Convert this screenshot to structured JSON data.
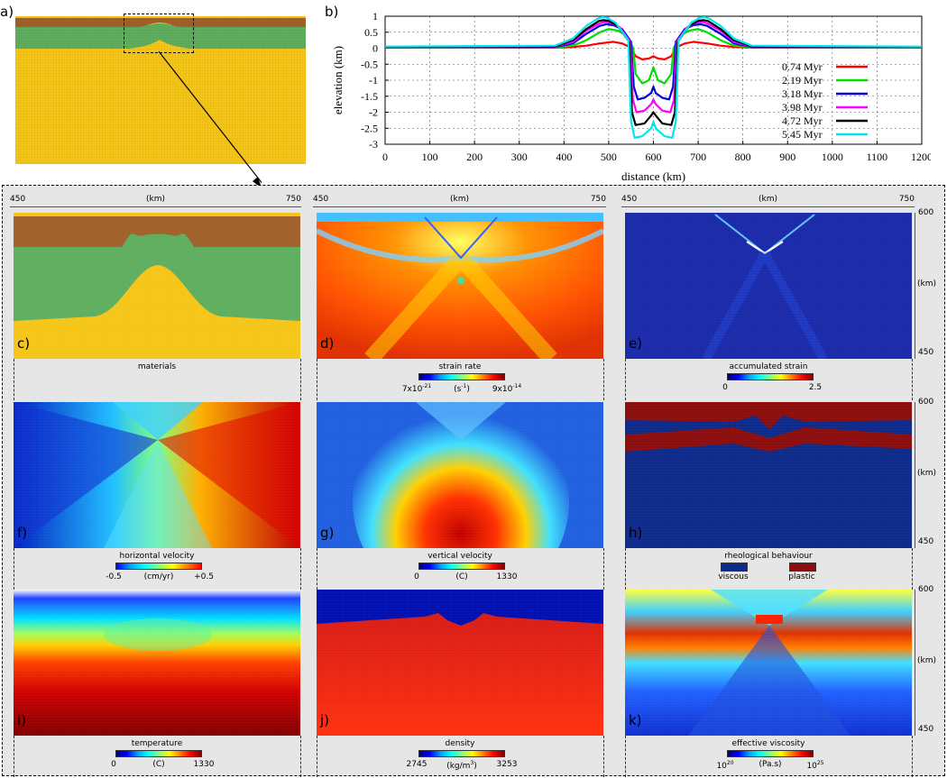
{
  "labels": {
    "a": "a)",
    "b": "b)"
  },
  "chart_data": [
    {
      "type": "line",
      "id": "b",
      "xlabel": "distance (km)",
      "ylabel": "elevation (km)",
      "xlim": [
        0,
        1200
      ],
      "ylim": [
        -3,
        1
      ],
      "xticks": [
        "0",
        "100",
        "200",
        "300",
        "400",
        "500",
        "600",
        "700",
        "800",
        "900",
        "1000",
        "1100",
        "1200"
      ],
      "yticks": [
        "1",
        "0.5",
        "0",
        "-0.5",
        "-1",
        "-1.5",
        "-2",
        "-2.5",
        "-3"
      ],
      "grid": true,
      "legend_position": "right",
      "series": [
        {
          "name": "0.74 Myr",
          "color": "#ff0000",
          "x": [
            0,
            380,
            420,
            450,
            480,
            510,
            530,
            550,
            560,
            575,
            590,
            600,
            610,
            625,
            640,
            650,
            670,
            690,
            720,
            750,
            780,
            820,
            1200
          ],
          "y": [
            0.02,
            0.02,
            0.04,
            0.08,
            0.15,
            0.2,
            0.15,
            0.02,
            -0.25,
            -0.35,
            -0.32,
            -0.25,
            -0.32,
            -0.35,
            -0.25,
            0.02,
            0.15,
            0.2,
            0.15,
            0.08,
            0.04,
            0.02,
            0.02
          ]
        },
        {
          "name": "2.19 Myr",
          "color": "#00dd00",
          "x": [
            0,
            380,
            420,
            450,
            480,
            500,
            520,
            540,
            555,
            560,
            575,
            590,
            600,
            610,
            625,
            640,
            645,
            660,
            680,
            700,
            720,
            750,
            780,
            820,
            1200
          ],
          "y": [
            0.02,
            0.03,
            0.08,
            0.25,
            0.5,
            0.6,
            0.55,
            0.4,
            0.0,
            -0.8,
            -1.1,
            -1.0,
            -0.6,
            -1.0,
            -1.1,
            -0.8,
            0.0,
            0.4,
            0.55,
            0.6,
            0.5,
            0.25,
            0.08,
            0.03,
            0.02
          ]
        },
        {
          "name": "3.18 Myr",
          "color": "#0000dd",
          "x": [
            0,
            380,
            420,
            450,
            480,
            495,
            510,
            530,
            550,
            556,
            565,
            580,
            595,
            600,
            605,
            620,
            635,
            644,
            650,
            670,
            690,
            705,
            720,
            750,
            780,
            820,
            1200
          ],
          "y": [
            0.03,
            0.04,
            0.15,
            0.45,
            0.7,
            0.75,
            0.72,
            0.6,
            0.2,
            -1.2,
            -1.6,
            -1.55,
            -1.4,
            -1.2,
            -1.4,
            -1.55,
            -1.6,
            -1.2,
            0.2,
            0.6,
            0.72,
            0.75,
            0.7,
            0.45,
            0.15,
            0.04,
            0.03
          ]
        },
        {
          "name": "3.98 Myr",
          "color": "#ff00ff",
          "x": [
            0,
            380,
            420,
            450,
            480,
            490,
            505,
            525,
            548,
            554,
            562,
            580,
            595,
            600,
            605,
            620,
            638,
            646,
            652,
            675,
            695,
            710,
            720,
            750,
            780,
            820,
            1200
          ],
          "y": [
            0.03,
            0.05,
            0.2,
            0.55,
            0.78,
            0.82,
            0.8,
            0.65,
            0.2,
            -1.6,
            -2.0,
            -1.95,
            -1.75,
            -1.6,
            -1.75,
            -1.95,
            -2.0,
            -1.6,
            0.2,
            0.65,
            0.8,
            0.82,
            0.78,
            0.55,
            0.2,
            0.05,
            0.03
          ]
        },
        {
          "name": "4.72 Myr",
          "color": "#000000",
          "x": [
            0,
            380,
            420,
            450,
            478,
            488,
            500,
            520,
            546,
            552,
            560,
            580,
            595,
            600,
            605,
            620,
            640,
            648,
            654,
            680,
            700,
            712,
            722,
            750,
            780,
            820,
            1200
          ],
          "y": [
            0.04,
            0.06,
            0.25,
            0.6,
            0.85,
            0.88,
            0.86,
            0.7,
            0.2,
            -2.0,
            -2.4,
            -2.35,
            -2.1,
            -2.0,
            -2.1,
            -2.35,
            -2.4,
            -2.0,
            0.2,
            0.7,
            0.86,
            0.88,
            0.85,
            0.6,
            0.25,
            0.06,
            0.04
          ]
        },
        {
          "name": "5.45 Myr",
          "color": "#00e5ee",
          "x": [
            0,
            380,
            420,
            450,
            475,
            485,
            495,
            515,
            544,
            550,
            558,
            575,
            595,
            600,
            605,
            625,
            642,
            650,
            656,
            685,
            705,
            715,
            725,
            750,
            780,
            820,
            1200
          ],
          "y": [
            0.05,
            0.08,
            0.3,
            0.7,
            0.92,
            0.97,
            0.96,
            0.8,
            0.25,
            -2.3,
            -2.8,
            -2.75,
            -2.5,
            -2.3,
            -2.5,
            -2.75,
            -2.8,
            -2.3,
            0.25,
            0.8,
            0.96,
            0.97,
            0.92,
            0.7,
            0.3,
            0.08,
            0.05
          ]
        }
      ]
    }
  ],
  "maps": {
    "x_start": "450",
    "x_unit": "(km)",
    "x_end": "750",
    "y_top": "600",
    "y_unit": "(km)",
    "y_bottom": "450",
    "panels": {
      "c": {
        "tag": "c)",
        "caption": "materials"
      },
      "d": {
        "tag": "d)",
        "caption": "strain rate",
        "cb_min": "7x10",
        "cb_min_exp": "-21",
        "cb_unit": "(s",
        "cb_unit_exp": "-1",
        "cb_unit_close": ")",
        "cb_max": "9x10",
        "cb_max_exp": "-14"
      },
      "e": {
        "tag": "e)",
        "caption": "accumulated strain",
        "cb_min": "0",
        "cb_max": "2.5"
      },
      "f": {
        "tag": "f)",
        "caption": "horizontal velocity",
        "cb_min": "-0.5",
        "cb_unit": "(cm/yr)",
        "cb_max": "+0.5"
      },
      "g": {
        "tag": "g)",
        "caption": "vertical velocity",
        "cb_min": "0",
        "cb_unit": "(C)",
        "cb_max": "1330"
      },
      "h": {
        "tag": "h)",
        "caption": "rheological behaviour",
        "legend_viscous": "viscous",
        "legend_plastic": "plastic"
      },
      "i": {
        "tag": "i)",
        "caption": "temperature",
        "cb_min": "0",
        "cb_unit": "(C)",
        "cb_max": "1330"
      },
      "j": {
        "tag": "j)",
        "caption": "density",
        "cb_min": "2745",
        "cb_unit": "(kg/m",
        "cb_unit_exp": "3",
        "cb_unit_close": ")",
        "cb_max": "3253"
      },
      "k": {
        "tag": "k)",
        "caption": "effective viscosity",
        "cb_min": "10",
        "cb_min_exp": "20",
        "cb_unit": "(Pa.s)",
        "cb_max": "10",
        "cb_max_exp": "25"
      }
    }
  },
  "colors": {
    "upper_crust": "#a0612a",
    "lower_crust": "#5fae5f",
    "mantle": "#f5c518",
    "viscous": "#0d2a8a",
    "plastic": "#8b0d0d"
  }
}
